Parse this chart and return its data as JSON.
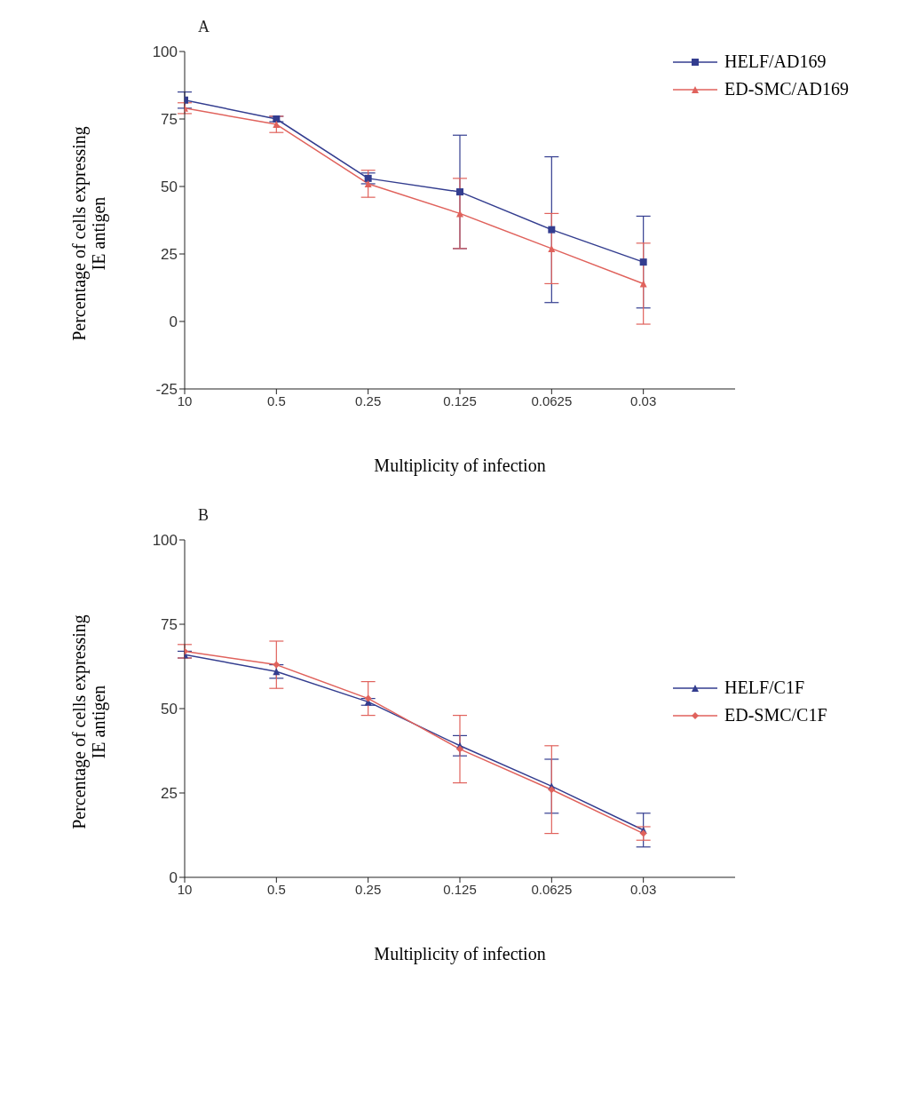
{
  "chart_data": [
    {
      "type": "line",
      "title": "A",
      "xlabel": "Multiplicity of infection",
      "ylabel": "Percentage of cells expressing IE antigen",
      "categories": [
        "10",
        "0.5",
        "0.25",
        "0.125",
        "0.0625",
        "0.03"
      ],
      "ylim": [
        -25,
        100
      ],
      "yticks": [
        -25,
        0,
        25,
        50,
        75,
        100
      ],
      "grid": false,
      "legend": "top right",
      "line_style": "solid",
      "series": [
        {
          "name": "HELF/AD169",
          "color": "#333d8f",
          "marker": "square",
          "values": [
            82,
            75,
            53,
            48,
            34,
            22
          ],
          "errors": [
            3,
            1,
            2,
            21,
            27,
            17
          ]
        },
        {
          "name": "ED-SMC/AD169",
          "color": "#e0625c",
          "marker": "triangle",
          "values": [
            79,
            73,
            51,
            40,
            27,
            14
          ],
          "errors": [
            2,
            3,
            5,
            13,
            13,
            15
          ]
        }
      ]
    },
    {
      "type": "line",
      "title": "B",
      "xlabel": "Multiplicity of infection",
      "ylabel": "Percentage of cells expressing IE antigen",
      "categories": [
        "10",
        "0.5",
        "0.25",
        "0.125",
        "0.0625",
        "0.03"
      ],
      "ylim": [
        0,
        100
      ],
      "yticks": [
        0,
        25,
        50,
        75,
        100
      ],
      "grid": false,
      "legend": "right",
      "line_style": "solid",
      "series": [
        {
          "name": "HELF/C1F",
          "color": "#333d8f",
          "marker": "triangle",
          "values": [
            66,
            61,
            52,
            39,
            27,
            14
          ],
          "errors": [
            1,
            2,
            1,
            3,
            8,
            5
          ]
        },
        {
          "name": "ED-SMC/C1F",
          "color": "#e0625c",
          "marker": "diamond",
          "values": [
            67,
            63,
            53,
            38,
            26,
            13
          ],
          "errors": [
            2,
            7,
            5,
            10,
            13,
            2
          ]
        }
      ]
    }
  ]
}
